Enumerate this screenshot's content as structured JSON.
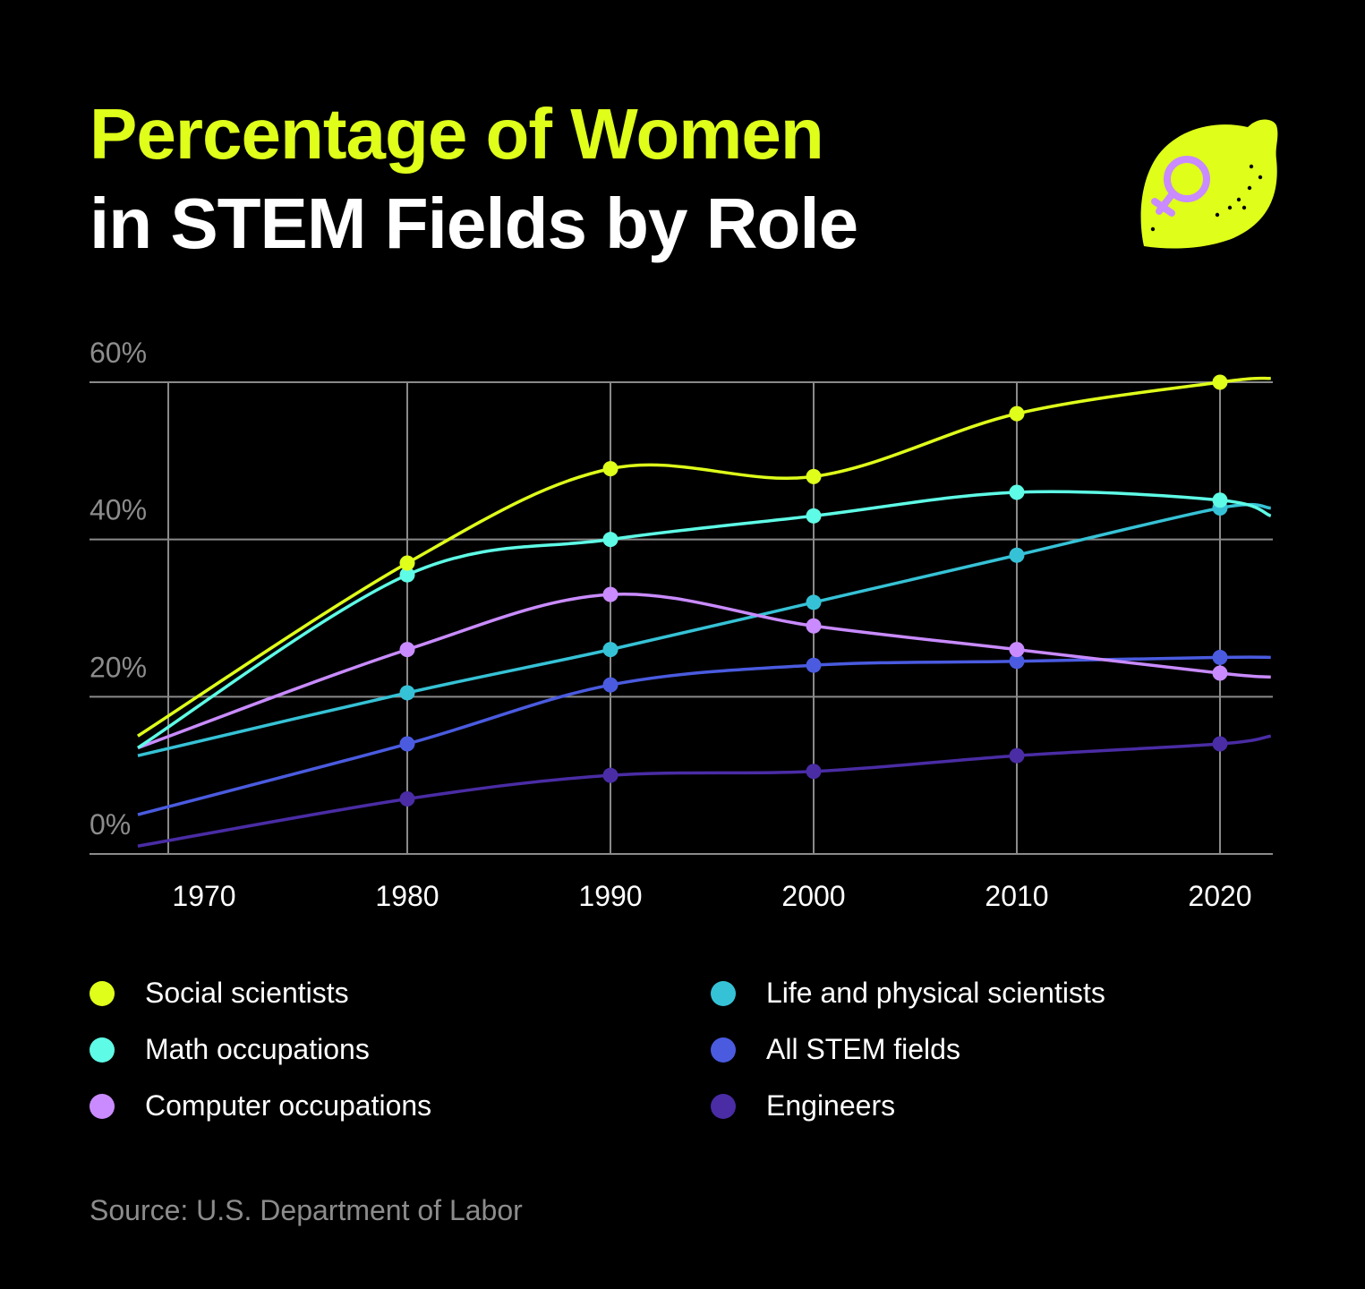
{
  "title": {
    "line1": "Percentage of Women",
    "line2": "in STEM Fields by Role"
  },
  "logo": {
    "icon": "lemon-female-symbol-icon",
    "colors": {
      "lemon": "#DFFF1A",
      "symbol": "#C98BFF"
    }
  },
  "chart_data": {
    "type": "line",
    "title": "Percentage of Women in STEM Fields by Role",
    "xlabel": "",
    "ylabel": "",
    "x_ticks": [
      "1970",
      "1980",
      "1990",
      "2000",
      "2010",
      "2020"
    ],
    "y_ticks": [
      "0%",
      "20%",
      "40%",
      "60%"
    ],
    "y_tick_values": [
      0,
      20,
      40,
      60
    ],
    "ylim": [
      0,
      60
    ],
    "grid": true,
    "legend_position": "bottom",
    "series": [
      {
        "name": "Social scientists",
        "color": "#DFFF1A",
        "x": [
          1968.5,
          1980,
          1990,
          2000,
          2010,
          2020,
          2022.5
        ],
        "markers": [
          1980,
          1990,
          2000,
          2010,
          2020
        ],
        "values": [
          15,
          37,
          49,
          48,
          56,
          60,
          60.5
        ]
      },
      {
        "name": "Math occupations",
        "color": "#5EFBE6",
        "x": [
          1968.5,
          1980,
          1990,
          2000,
          2010,
          2020,
          2022.5
        ],
        "markers": [
          1980,
          1990,
          2000,
          2010,
          2020
        ],
        "values": [
          13.5,
          35.5,
          40,
          43,
          46,
          45,
          43
        ]
      },
      {
        "name": "Computer occupations",
        "color": "#C98BFF",
        "x": [
          1968.5,
          1980,
          1990,
          2000,
          2010,
          2020,
          2022.5
        ],
        "markers": [
          1980,
          1990,
          2000,
          2010,
          2020
        ],
        "values": [
          13.5,
          26,
          33,
          29,
          26,
          23,
          22.5
        ]
      },
      {
        "name": "Life and physical scientists",
        "color": "#36C2D6",
        "x": [
          1968.5,
          1980,
          1990,
          2000,
          2010,
          2020,
          2022.5
        ],
        "markers": [
          1980,
          1990,
          2000,
          2010,
          2020
        ],
        "values": [
          12.5,
          20.5,
          26,
          32,
          38,
          44,
          44
        ]
      },
      {
        "name": "All STEM fields",
        "color": "#4A5BE0",
        "x": [
          1968.5,
          1980,
          1990,
          2000,
          2010,
          2020,
          2022.5
        ],
        "markers": [
          1980,
          1990,
          2000,
          2010,
          2020
        ],
        "values": [
          5,
          14,
          21.5,
          24,
          24.5,
          25,
          25
        ]
      },
      {
        "name": "Engineers",
        "color": "#4A2CA5",
        "x": [
          1968.5,
          1980,
          1990,
          2000,
          2010,
          2020,
          2022.5
        ],
        "markers": [
          1980,
          1990,
          2000,
          2010,
          2020
        ],
        "values": [
          1,
          7,
          10,
          10.5,
          12.5,
          14,
          15
        ]
      }
    ]
  },
  "legend": [
    {
      "label": "Social scientists",
      "color": "#DFFF1A"
    },
    {
      "label": "Math occupations",
      "color": "#5EFBE6"
    },
    {
      "label": "Computer occupations",
      "color": "#C98BFF"
    },
    {
      "label": "Life and physical scientists",
      "color": "#36C2D6"
    },
    {
      "label": "All STEM fields",
      "color": "#4A5BE0"
    },
    {
      "label": "Engineers",
      "color": "#4A2CA5"
    }
  ],
  "source": "Source: U.S. Department of Labor"
}
